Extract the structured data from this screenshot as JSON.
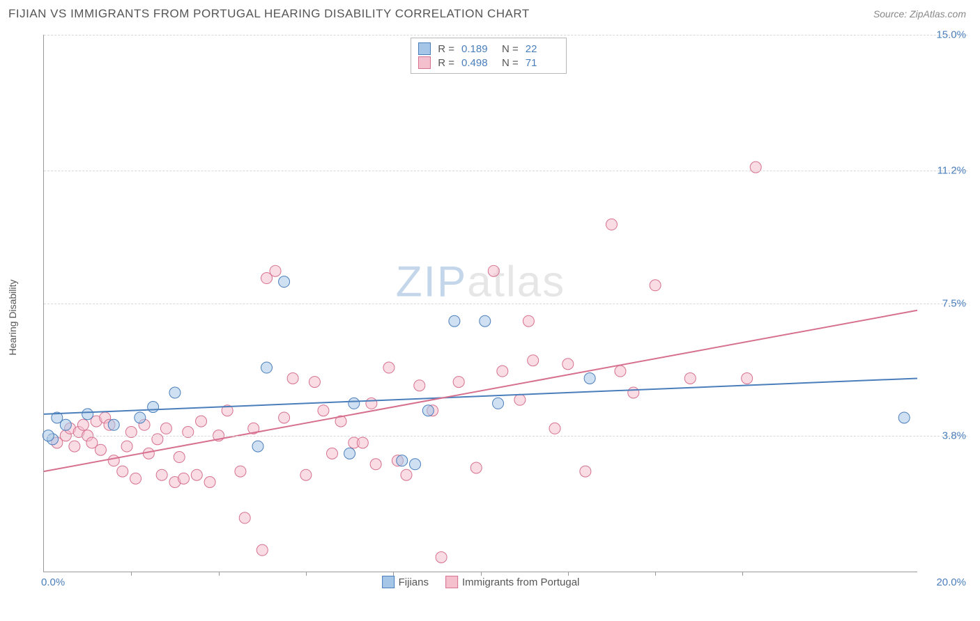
{
  "header": {
    "title": "FIJIAN VS IMMIGRANTS FROM PORTUGAL HEARING DISABILITY CORRELATION CHART",
    "source": "Source: ZipAtlas.com"
  },
  "watermark": {
    "part1": "ZIP",
    "part2": "atlas"
  },
  "chart": {
    "type": "scatter",
    "y_axis_label": "Hearing Disability",
    "x_range": [
      0.0,
      20.0
    ],
    "y_range": [
      0.0,
      15.0
    ],
    "x_min_label": "0.0%",
    "x_max_label": "20.0%",
    "x_tick_positions": [
      2,
      4,
      6,
      8,
      10,
      12,
      14,
      16
    ],
    "y_gridlines": [
      3.8,
      7.5,
      11.2,
      15.0
    ],
    "y_tick_labels": [
      "3.8%",
      "7.5%",
      "11.2%",
      "15.0%"
    ],
    "background_color": "#ffffff",
    "grid_color": "#d8d8d8",
    "axis_color": "#999999",
    "label_color": "#4a7ebb",
    "marker_radius": 8,
    "marker_opacity": 0.55,
    "line_width": 2
  },
  "series": [
    {
      "name": "Fijians",
      "color_fill": "#a6c6e7",
      "color_stroke": "#4a7ebb",
      "r_value": "0.189",
      "n_value": "22",
      "trend_line": {
        "x1": 0.0,
        "y1": 4.4,
        "x2": 20.0,
        "y2": 5.4
      },
      "points": [
        [
          0.2,
          3.7
        ],
        [
          0.3,
          4.3
        ],
        [
          0.5,
          4.1
        ],
        [
          1.0,
          4.4
        ],
        [
          1.6,
          4.1
        ],
        [
          2.2,
          4.3
        ],
        [
          2.5,
          4.6
        ],
        [
          3.0,
          5.0
        ],
        [
          4.9,
          3.5
        ],
        [
          5.1,
          5.7
        ],
        [
          5.5,
          8.1
        ],
        [
          7.0,
          3.3
        ],
        [
          7.1,
          4.7
        ],
        [
          8.2,
          3.1
        ],
        [
          8.8,
          4.5
        ],
        [
          9.4,
          7.0
        ],
        [
          10.1,
          7.0
        ],
        [
          10.4,
          4.7
        ],
        [
          12.5,
          5.4
        ],
        [
          8.5,
          3.0
        ],
        [
          19.7,
          4.3
        ],
        [
          0.1,
          3.8
        ]
      ]
    },
    {
      "name": "Immigrants from Portugal",
      "color_fill": "#f4c0cd",
      "color_stroke": "#d6708e",
      "r_value": "0.498",
      "n_value": "71",
      "trend_line": {
        "x1": 0.0,
        "y1": 2.8,
        "x2": 20.0,
        "y2": 7.3
      },
      "points": [
        [
          0.3,
          3.6
        ],
        [
          0.5,
          3.8
        ],
        [
          0.6,
          4.0
        ],
        [
          0.7,
          3.5
        ],
        [
          0.8,
          3.9
        ],
        [
          0.9,
          4.1
        ],
        [
          1.0,
          3.8
        ],
        [
          1.1,
          3.6
        ],
        [
          1.2,
          4.2
        ],
        [
          1.3,
          3.4
        ],
        [
          1.4,
          4.3
        ],
        [
          1.5,
          4.1
        ],
        [
          1.6,
          3.1
        ],
        [
          1.8,
          2.8
        ],
        [
          1.9,
          3.5
        ],
        [
          2.0,
          3.9
        ],
        [
          2.1,
          2.6
        ],
        [
          2.3,
          4.1
        ],
        [
          2.4,
          3.3
        ],
        [
          2.6,
          3.7
        ],
        [
          2.7,
          2.7
        ],
        [
          2.8,
          4.0
        ],
        [
          3.0,
          2.5
        ],
        [
          3.1,
          3.2
        ],
        [
          3.2,
          2.6
        ],
        [
          3.3,
          3.9
        ],
        [
          3.5,
          2.7
        ],
        [
          3.6,
          4.2
        ],
        [
          3.8,
          2.5
        ],
        [
          4.0,
          3.8
        ],
        [
          4.2,
          4.5
        ],
        [
          4.5,
          2.8
        ],
        [
          4.6,
          1.5
        ],
        [
          4.8,
          4.0
        ],
        [
          5.0,
          0.6
        ],
        [
          5.1,
          8.2
        ],
        [
          5.3,
          8.4
        ],
        [
          5.5,
          4.3
        ],
        [
          5.7,
          5.4
        ],
        [
          6.0,
          2.7
        ],
        [
          6.2,
          5.3
        ],
        [
          6.4,
          4.5
        ],
        [
          6.6,
          3.3
        ],
        [
          6.8,
          4.2
        ],
        [
          7.1,
          3.6
        ],
        [
          7.3,
          3.6
        ],
        [
          7.5,
          4.7
        ],
        [
          7.6,
          3.0
        ],
        [
          7.9,
          5.7
        ],
        [
          8.1,
          3.1
        ],
        [
          8.3,
          2.7
        ],
        [
          8.6,
          5.2
        ],
        [
          9.1,
          0.4
        ],
        [
          9.5,
          5.3
        ],
        [
          9.9,
          2.9
        ],
        [
          10.3,
          8.4
        ],
        [
          10.5,
          5.6
        ],
        [
          10.9,
          4.8
        ],
        [
          11.1,
          7.0
        ],
        [
          11.2,
          5.9
        ],
        [
          11.7,
          4.0
        ],
        [
          12.0,
          5.8
        ],
        [
          12.4,
          2.8
        ],
        [
          13.0,
          9.7
        ],
        [
          13.5,
          5.0
        ],
        [
          14.0,
          8.0
        ],
        [
          14.8,
          5.4
        ],
        [
          16.1,
          5.4
        ],
        [
          16.3,
          11.3
        ],
        [
          13.2,
          5.6
        ],
        [
          8.9,
          4.5
        ]
      ]
    }
  ],
  "legend_top": {
    "r_label": "R  =",
    "n_label": "N  ="
  },
  "legend_bottom": {
    "items": [
      "Fijians",
      "Immigrants from Portugal"
    ]
  }
}
